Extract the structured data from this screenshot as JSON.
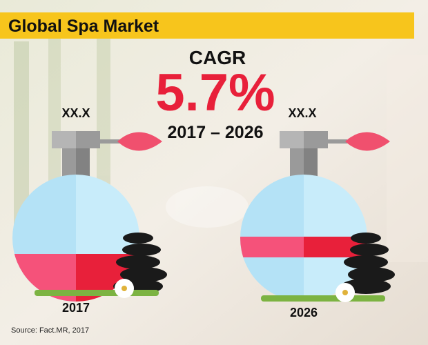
{
  "header": {
    "title": "Global Spa Market"
  },
  "cagr": {
    "label": "CAGR",
    "value": "5.7%",
    "period": "2017 – 2026"
  },
  "bottles": [
    {
      "label": "XX.X",
      "year": "2017"
    },
    {
      "label": "XX.X",
      "year": "2026"
    }
  ],
  "source": "Source: Fact.MR, 2017"
}
